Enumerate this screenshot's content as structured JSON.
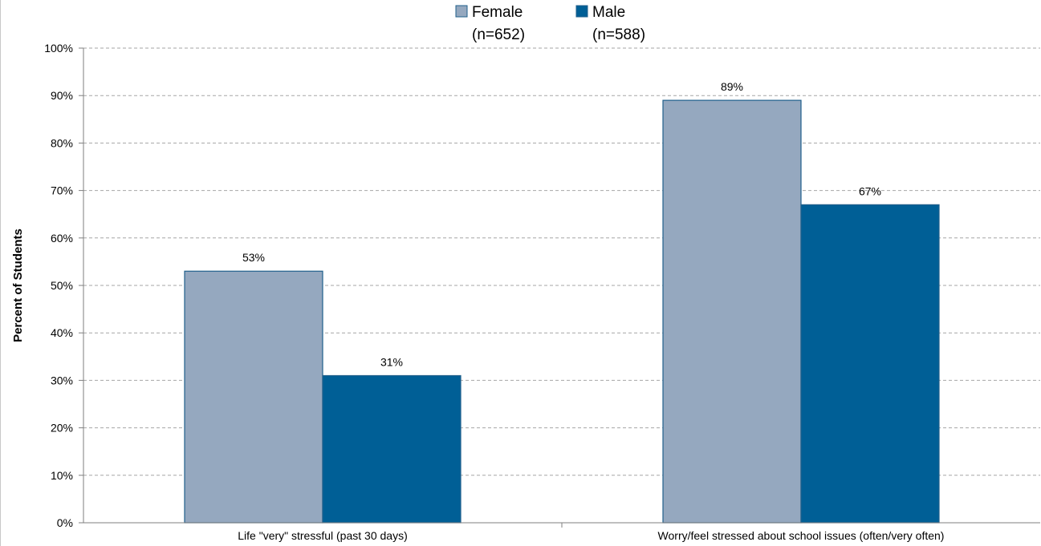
{
  "chart_data": {
    "type": "bar",
    "title": "",
    "xlabel": "",
    "ylabel": "Percent of Students",
    "ylim": [
      0,
      100
    ],
    "y_ticks": [
      "0%",
      "10%",
      "20%",
      "30%",
      "40%",
      "50%",
      "60%",
      "70%",
      "80%",
      "90%",
      "100%"
    ],
    "grid": true,
    "legend_position": "top-center",
    "categories": [
      "Life \"very\" stressful (past 30 days)",
      "Worry/feel stressed about school issues (often/very often)"
    ],
    "series": [
      {
        "name": "Female",
        "legend_sublabel": "(n=652)",
        "color": "#95a8bf",
        "values": [
          53,
          89
        ],
        "labels": [
          "53%",
          "89%"
        ]
      },
      {
        "name": "Male",
        "legend_sublabel": "(n=588)",
        "color": "#005f96",
        "values": [
          31,
          67
        ],
        "labels": [
          "31%",
          "67%"
        ]
      }
    ]
  }
}
